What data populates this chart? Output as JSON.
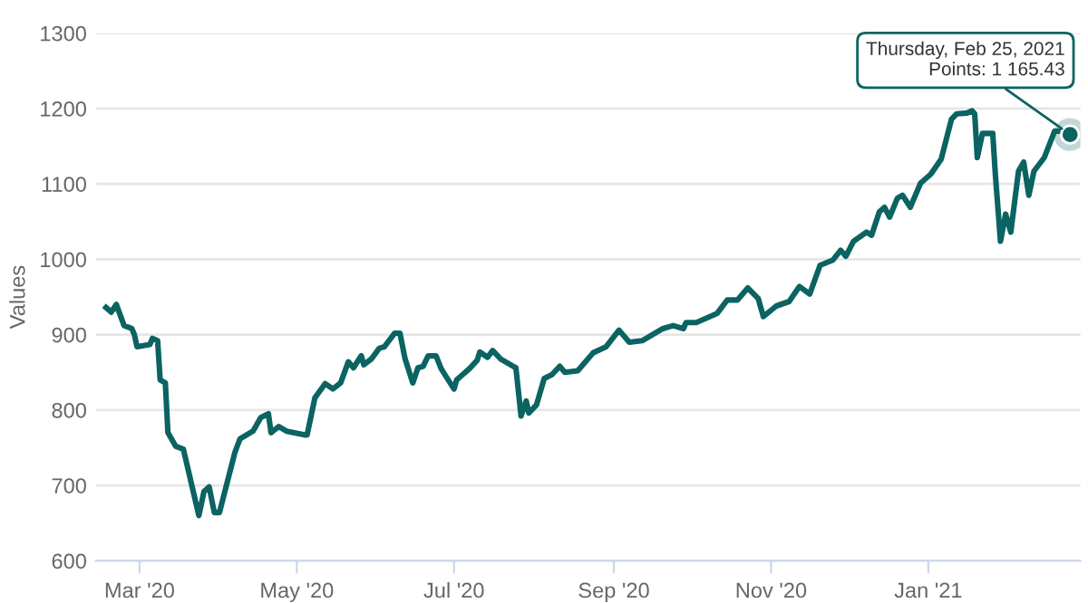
{
  "chart_data": {
    "type": "line",
    "ylabel": "Values",
    "xlim": [
      "2020-02-13",
      "2021-03-01"
    ],
    "ylim": [
      600,
      1300
    ],
    "xticks": [
      {
        "value": "2020-03-01",
        "label": "Mar '20"
      },
      {
        "value": "2020-05-01",
        "label": "May '20"
      },
      {
        "value": "2020-07-01",
        "label": "Jul '20"
      },
      {
        "value": "2020-09-01",
        "label": "Sep '20"
      },
      {
        "value": "2020-11-01",
        "label": "Nov '20"
      },
      {
        "value": "2021-01-01",
        "label": "Jan '21"
      }
    ],
    "yticks": [
      600,
      700,
      800,
      900,
      1000,
      1100,
      1200,
      1300
    ],
    "grid": "y",
    "legend": false,
    "marker": "none",
    "line_style": "solid",
    "annotations": [
      {
        "text": "Thursday, Feb 25, 2021\nPoints: 1 165.43",
        "x": "2021-02-25",
        "y": 1165.43
      }
    ],
    "series": [
      {
        "color": "#0b6362",
        "x": [
          "2020-02-17",
          "2020-02-19",
          "2020-02-21",
          "2020-02-24",
          "2020-02-27",
          "2020-02-28",
          "2020-02-29",
          "2020-03-05",
          "2020-03-06",
          "2020-03-08",
          "2020-03-09",
          "2020-03-11",
          "2020-03-12",
          "2020-03-15",
          "2020-03-18",
          "2020-03-21",
          "2020-03-24",
          "2020-03-26",
          "2020-03-28",
          "2020-03-30",
          "2020-04-01",
          "2020-04-07",
          "2020-04-09",
          "2020-04-14",
          "2020-04-17",
          "2020-04-20",
          "2020-04-21",
          "2020-04-24",
          "2020-04-27",
          "2020-05-04",
          "2020-05-05",
          "2020-05-08",
          "2020-05-12",
          "2020-05-15",
          "2020-05-18",
          "2020-05-21",
          "2020-05-23",
          "2020-05-26",
          "2020-05-27",
          "2020-05-30",
          "2020-06-02",
          "2020-06-04",
          "2020-06-08",
          "2020-06-10",
          "2020-06-12",
          "2020-06-15",
          "2020-06-17",
          "2020-06-19",
          "2020-06-21",
          "2020-06-24",
          "2020-06-26",
          "2020-06-28",
          "2020-07-01",
          "2020-07-02",
          "2020-07-07",
          "2020-07-10",
          "2020-07-11",
          "2020-07-14",
          "2020-07-16",
          "2020-07-19",
          "2020-07-24",
          "2020-07-25",
          "2020-07-27",
          "2020-07-29",
          "2020-07-30",
          "2020-08-02",
          "2020-08-05",
          "2020-08-08",
          "2020-08-11",
          "2020-08-13",
          "2020-08-18",
          "2020-08-24",
          "2020-08-29",
          "2020-09-03",
          "2020-09-07",
          "2020-09-12",
          "2020-09-16",
          "2020-09-20",
          "2020-09-24",
          "2020-09-28",
          "2020-09-29",
          "2020-10-03",
          "2020-10-11",
          "2020-10-15",
          "2020-10-19",
          "2020-10-23",
          "2020-10-27",
          "2020-10-29",
          "2020-11-03",
          "2020-11-08",
          "2020-11-12",
          "2020-11-16",
          "2020-11-20",
          "2020-11-25",
          "2020-11-28",
          "2020-11-30",
          "2020-12-03",
          "2020-12-08",
          "2020-12-10",
          "2020-12-13",
          "2020-12-15",
          "2020-12-17",
          "2020-12-20",
          "2020-12-22",
          "2020-12-25",
          "2020-12-29",
          "2021-01-02",
          "2021-01-06",
          "2021-01-10",
          "2021-01-12",
          "2021-01-16",
          "2021-01-18",
          "2021-01-19",
          "2021-01-20",
          "2021-01-22",
          "2021-01-26",
          "2021-01-27",
          "2021-01-29",
          "2021-01-31",
          "2021-02-02",
          "2021-02-05",
          "2021-02-07",
          "2021-02-09",
          "2021-02-11",
          "2021-02-15",
          "2021-02-19",
          "2021-02-22",
          "2021-02-25"
        ],
        "values": [
          936,
          930,
          940,
          912,
          908,
          900,
          884,
          887,
          895,
          892,
          840,
          836,
          770,
          752,
          748,
          704,
          660,
          692,
          698,
          664,
          664,
          744,
          762,
          772,
          790,
          795,
          770,
          778,
          772,
          767,
          767,
          816,
          835,
          828,
          836,
          864,
          856,
          872,
          860,
          868,
          882,
          884,
          902,
          902,
          868,
          836,
          856,
          858,
          872,
          872,
          855,
          844,
          828,
          840,
          855,
          866,
          877,
          870,
          879,
          868,
          858,
          856,
          792,
          812,
          796,
          807,
          842,
          847,
          858,
          850,
          852,
          876,
          884,
          906,
          890,
          892,
          900,
          908,
          912,
          908,
          916,
          916,
          928,
          946,
          946,
          962,
          948,
          924,
          938,
          944,
          964,
          954,
          992,
          999,
          1012,
          1004,
          1024,
          1036,
          1032,
          1063,
          1069,
          1056,
          1081,
          1085,
          1069,
          1101,
          1113,
          1133,
          1186,
          1193,
          1194,
          1197,
          1193,
          1135,
          1167,
          1167,
          1113,
          1024,
          1060,
          1036,
          1117,
          1129,
          1085,
          1117,
          1135,
          1170,
          1170,
          1165.43
        ]
      }
    ]
  }
}
